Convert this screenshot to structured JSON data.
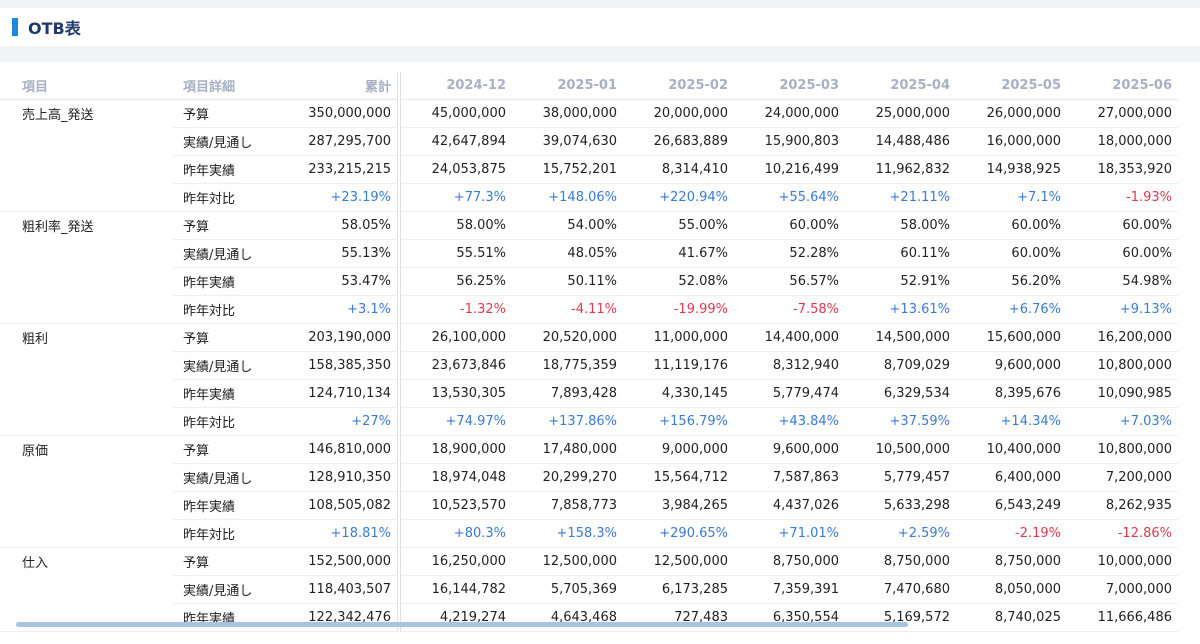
{
  "header": {
    "title": "OTB表"
  },
  "table": {
    "columns": [
      "項目",
      "項目詳細",
      "累計",
      "2024-12",
      "2025-01",
      "2025-02",
      "2025-03",
      "2025-04",
      "2025-05",
      "2025-06"
    ],
    "rows": [
      {
        "item": "売上高_発送",
        "detail": "予算",
        "values": [
          "350,000,000",
          "45,000,000",
          "38,000,000",
          "20,000,000",
          "24,000,000",
          "25,000,000",
          "26,000,000",
          "27,000,000"
        ]
      },
      {
        "item": "",
        "detail": "実績/見通し",
        "values": [
          "287,295,700",
          "42,647,894",
          "39,074,630",
          "26,683,889",
          "15,900,803",
          "14,488,486",
          "16,000,000",
          "18,000,000"
        ]
      },
      {
        "item": "",
        "detail": "昨年実績",
        "values": [
          "233,215,215",
          "24,053,875",
          "15,752,201",
          "8,314,410",
          "10,216,499",
          "11,962,832",
          "14,938,925",
          "18,353,920"
        ]
      },
      {
        "item": "",
        "detail": "昨年対比",
        "values": [
          "+23.19%",
          "+77.3%",
          "+148.06%",
          "+220.94%",
          "+55.64%",
          "+21.11%",
          "+7.1%",
          "-1.93%"
        ]
      },
      {
        "item": "粗利率_発送",
        "detail": "予算",
        "values": [
          "58.05%",
          "58.00%",
          "54.00%",
          "55.00%",
          "60.00%",
          "58.00%",
          "60.00%",
          "60.00%"
        ]
      },
      {
        "item": "",
        "detail": "実績/見通し",
        "values": [
          "55.13%",
          "55.51%",
          "48.05%",
          "41.67%",
          "52.28%",
          "60.11%",
          "60.00%",
          "60.00%"
        ]
      },
      {
        "item": "",
        "detail": "昨年実績",
        "values": [
          "53.47%",
          "56.25%",
          "50.11%",
          "52.08%",
          "56.57%",
          "52.91%",
          "56.20%",
          "54.98%"
        ]
      },
      {
        "item": "",
        "detail": "昨年対比",
        "values": [
          "+3.1%",
          "-1.32%",
          "-4.11%",
          "-19.99%",
          "-7.58%",
          "+13.61%",
          "+6.76%",
          "+9.13%"
        ]
      },
      {
        "item": "粗利",
        "detail": "予算",
        "values": [
          "203,190,000",
          "26,100,000",
          "20,520,000",
          "11,000,000",
          "14,400,000",
          "14,500,000",
          "15,600,000",
          "16,200,000"
        ]
      },
      {
        "item": "",
        "detail": "実績/見通し",
        "values": [
          "158,385,350",
          "23,673,846",
          "18,775,359",
          "11,119,176",
          "8,312,940",
          "8,709,029",
          "9,600,000",
          "10,800,000"
        ]
      },
      {
        "item": "",
        "detail": "昨年実績",
        "values": [
          "124,710,134",
          "13,530,305",
          "7,893,428",
          "4,330,145",
          "5,779,474",
          "6,329,534",
          "8,395,676",
          "10,090,985"
        ]
      },
      {
        "item": "",
        "detail": "昨年対比",
        "values": [
          "+27%",
          "+74.97%",
          "+137.86%",
          "+156.79%",
          "+43.84%",
          "+37.59%",
          "+14.34%",
          "+7.03%"
        ]
      },
      {
        "item": "原価",
        "detail": "予算",
        "values": [
          "146,810,000",
          "18,900,000",
          "17,480,000",
          "9,000,000",
          "9,600,000",
          "10,500,000",
          "10,400,000",
          "10,800,000"
        ]
      },
      {
        "item": "",
        "detail": "実績/見通し",
        "values": [
          "128,910,350",
          "18,974,048",
          "20,299,270",
          "15,564,712",
          "7,587,863",
          "5,779,457",
          "6,400,000",
          "7,200,000"
        ]
      },
      {
        "item": "",
        "detail": "昨年実績",
        "values": [
          "108,505,082",
          "10,523,570",
          "7,858,773",
          "3,984,265",
          "4,437,026",
          "5,633,298",
          "6,543,249",
          "8,262,935"
        ]
      },
      {
        "item": "",
        "detail": "昨年対比",
        "values": [
          "+18.81%",
          "+80.3%",
          "+158.3%",
          "+290.65%",
          "+71.01%",
          "+2.59%",
          "-2.19%",
          "-12.86%"
        ]
      },
      {
        "item": "仕入",
        "detail": "予算",
        "values": [
          "152,500,000",
          "16,250,000",
          "12,500,000",
          "12,500,000",
          "8,750,000",
          "8,750,000",
          "8,750,000",
          "10,000,000"
        ]
      },
      {
        "item": "",
        "detail": "実績/見通し",
        "values": [
          "118,403,507",
          "16,144,782",
          "5,705,369",
          "6,173,285",
          "7,359,391",
          "7,470,680",
          "8,050,000",
          "7,000,000"
        ]
      },
      {
        "item": "",
        "detail": "昨年実績",
        "values": [
          "122,342,476",
          "4,219,274",
          "4,643,468",
          "727,483",
          "6,350,554",
          "5,169,572",
          "8,740,025",
          "11,666,486"
        ]
      }
    ]
  },
  "colors": {
    "accent": "#1e88e5",
    "positive": "#3a7bd5",
    "negative": "#e0394f",
    "header_text": "#a9b0c3"
  }
}
